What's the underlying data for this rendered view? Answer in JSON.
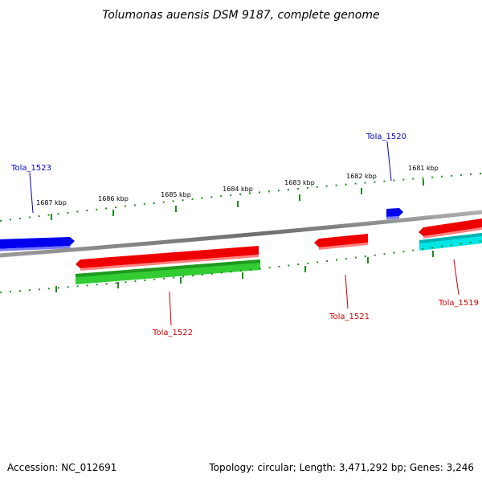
{
  "title": "Tolumonas auensis DSM 9187, complete genome",
  "footer": {
    "accession": "Accession: NC_012691",
    "summary": "Topology: circular; Length: 3,471,292 bp; Genes: 3,246"
  },
  "scale_labels": [
    "1687 kbp",
    "1686 kbp",
    "1685 kbp",
    "1684 kbp",
    "1683 kbp",
    "1682 kbp",
    "1681 kbp"
  ],
  "genes": [
    {
      "id": "Tola_1523",
      "color": "#0000cc"
    },
    {
      "id": "Tola_1520",
      "color": "#0000cc"
    },
    {
      "id": "Tola_1522",
      "color": "#cc0000"
    },
    {
      "id": "Tola_1521",
      "color": "#cc0000"
    },
    {
      "id": "Tola_1519",
      "color": "#cc0000"
    }
  ],
  "colors": {
    "forward_strand": "#0000ff",
    "reverse_strand": "#ff0000",
    "tRNA_like_green": "#33cc33",
    "cyan_feature": "#00e5e5",
    "backbone": "#808080",
    "tick_green": "#228b22",
    "label_blue": "#0000cc",
    "label_red": "#cc0000"
  }
}
